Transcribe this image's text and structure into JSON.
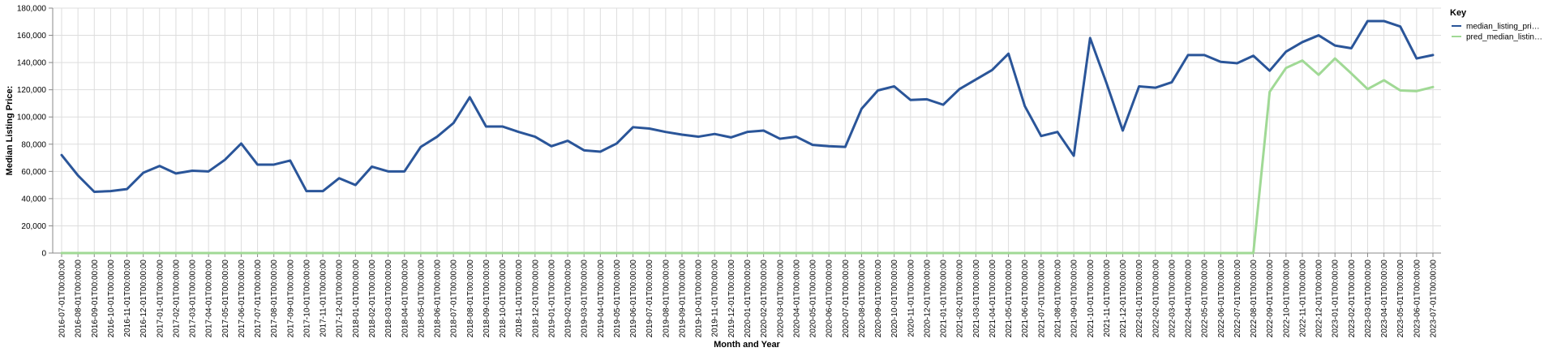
{
  "chart_data": {
    "type": "line",
    "xlabel": "Month and Year",
    "ylabel": "Median Listing Price:",
    "ylim": [
      0,
      180000
    ],
    "yticks": [
      0,
      20000,
      40000,
      60000,
      80000,
      100000,
      120000,
      140000,
      160000,
      180000
    ],
    "ytick_labels": [
      "0",
      "20,000",
      "40,000",
      "60,000",
      "80,000",
      "100,000",
      "120,000",
      "140,000",
      "160,000",
      "180,000"
    ],
    "grid": true,
    "legend": {
      "title": "Key",
      "position": "top-right"
    },
    "x": [
      "2016-07-01T00:00:00",
      "2016-08-01T00:00:00",
      "2016-09-01T00:00:00",
      "2016-10-01T00:00:00",
      "2016-11-01T00:00:00",
      "2016-12-01T00:00:00",
      "2017-01-01T00:00:00",
      "2017-02-01T00:00:00",
      "2017-03-01T00:00:00",
      "2017-04-01T00:00:00",
      "2017-05-01T00:00:00",
      "2017-06-01T00:00:00",
      "2017-07-01T00:00:00",
      "2017-08-01T00:00:00",
      "2017-09-01T00:00:00",
      "2017-10-01T00:00:00",
      "2017-11-01T00:00:00",
      "2017-12-01T00:00:00",
      "2018-01-01T00:00:00",
      "2018-02-01T00:00:00",
      "2018-03-01T00:00:00",
      "2018-04-01T00:00:00",
      "2018-05-01T00:00:00",
      "2018-06-01T00:00:00",
      "2018-07-01T00:00:00",
      "2018-08-01T00:00:00",
      "2018-09-01T00:00:00",
      "2018-10-01T00:00:00",
      "2018-11-01T00:00:00",
      "2018-12-01T00:00:00",
      "2019-01-01T00:00:00",
      "2019-02-01T00:00:00",
      "2019-03-01T00:00:00",
      "2019-04-01T00:00:00",
      "2019-05-01T00:00:00",
      "2019-06-01T00:00:00",
      "2019-07-01T00:00:00",
      "2019-08-01T00:00:00",
      "2019-09-01T00:00:00",
      "2019-10-01T00:00:00",
      "2019-11-01T00:00:00",
      "2019-12-01T00:00:00",
      "2020-01-01T00:00:00",
      "2020-02-01T00:00:00",
      "2020-03-01T00:00:00",
      "2020-04-01T00:00:00",
      "2020-05-01T00:00:00",
      "2020-06-01T00:00:00",
      "2020-07-01T00:00:00",
      "2020-08-01T00:00:00",
      "2020-09-01T00:00:00",
      "2020-10-01T00:00:00",
      "2020-11-01T00:00:00",
      "2020-12-01T00:00:00",
      "2021-01-01T00:00:00",
      "2021-02-01T00:00:00",
      "2021-03-01T00:00:00",
      "2021-04-01T00:00:00",
      "2021-05-01T00:00:00",
      "2021-06-01T00:00:00",
      "2021-07-01T00:00:00",
      "2021-08-01T00:00:00",
      "2021-09-01T00:00:00",
      "2021-10-01T00:00:00",
      "2021-11-01T00:00:00",
      "2021-12-01T00:00:00",
      "2022-01-01T00:00:00",
      "2022-02-01T00:00:00",
      "2022-03-01T00:00:00",
      "2022-04-01T00:00:00",
      "2022-05-01T00:00:00",
      "2022-06-01T00:00:00",
      "2022-07-01T00:00:00",
      "2022-08-01T00:00:00",
      "2022-09-01T00:00:00",
      "2022-10-01T00:00:00",
      "2022-11-01T00:00:00",
      "2022-12-01T00:00:00",
      "2023-01-01T00:00:00",
      "2023-02-01T00:00:00",
      "2023-03-01T00:00:00",
      "2023-04-01T00:00:00",
      "2023-05-01T00:00:00",
      "2023-06-01T00:00:00",
      "2023-07-01T00:00:00"
    ],
    "series": [
      {
        "name": "median_listing_pri…",
        "color": "#2a5599",
        "values": [
          72000,
          57000,
          45000,
          45500,
          47000,
          59000,
          64000,
          58500,
          60500,
          60000,
          68500,
          80500,
          65000,
          65000,
          68000,
          45500,
          45500,
          55000,
          50000,
          63500,
          60000,
          60000,
          78000,
          85500,
          95500,
          114500,
          93000,
          93000,
          89000,
          85500,
          78500,
          82500,
          75500,
          74500,
          80500,
          92500,
          91500,
          89000,
          87000,
          85500,
          87500,
          85000,
          89000,
          90000,
          84000,
          85500,
          79500,
          78500,
          78000,
          106000,
          119500,
          122500,
          112500,
          113000,
          109000,
          120500,
          127500,
          134500,
          146500,
          108000,
          86000,
          89000,
          71500,
          158000,
          125000,
          90000,
          122500,
          121500,
          125500,
          145500,
          145500,
          140500,
          139500,
          145000,
          134000,
          148000,
          155000,
          160000,
          152500,
          150500,
          170500,
          170500,
          166500,
          143000,
          145500
        ]
      },
      {
        "name": "pred_median_listin…",
        "color": "#a0d995",
        "values": [
          0,
          0,
          0,
          0,
          0,
          0,
          0,
          0,
          0,
          0,
          0,
          0,
          0,
          0,
          0,
          0,
          0,
          0,
          0,
          0,
          0,
          0,
          0,
          0,
          0,
          0,
          0,
          0,
          0,
          0,
          0,
          0,
          0,
          0,
          0,
          0,
          0,
          0,
          0,
          0,
          0,
          0,
          0,
          0,
          0,
          0,
          0,
          0,
          0,
          0,
          0,
          0,
          0,
          0,
          0,
          0,
          0,
          0,
          0,
          0,
          0,
          0,
          0,
          0,
          0,
          0,
          0,
          0,
          0,
          0,
          0,
          0,
          0,
          0,
          118500,
          136000,
          141500,
          131000,
          143000,
          132000,
          120500,
          127000,
          119500,
          119000,
          122000
        ]
      }
    ]
  }
}
